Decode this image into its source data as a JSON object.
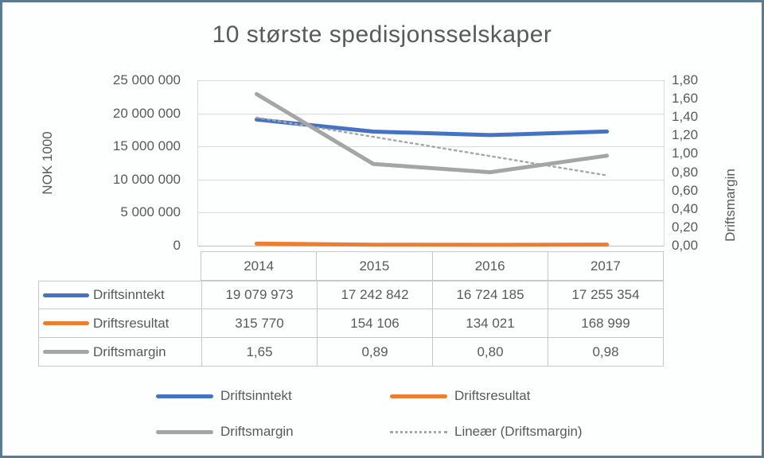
{
  "chart": {
    "title": "10 største spedisjonsselskaper",
    "left_axis": {
      "title": "NOK 1000",
      "ticks": [
        "25 000 000",
        "20 000 000",
        "15 000 000",
        "10 000 000",
        "5 000 000",
        "0"
      ]
    },
    "right_axis": {
      "title": "Driftsmargin",
      "ticks": [
        "1,80",
        "1,60",
        "1,40",
        "1,20",
        "1,00",
        "0,80",
        "0,60",
        "0,40",
        "0,20",
        "0,00"
      ]
    }
  },
  "chart_data": {
    "type": "line",
    "title": "10 største spedisjonsselskaper",
    "categories": [
      "2014",
      "2015",
      "2016",
      "2017"
    ],
    "series": [
      {
        "name": "Driftsinntekt",
        "axis": "left",
        "color": "#4472C4",
        "style": "solid",
        "values": [
          19079973,
          17242842,
          16724185,
          17255354
        ]
      },
      {
        "name": "Driftsresultat",
        "axis": "left",
        "color": "#ED7D31",
        "style": "solid",
        "values": [
          315770,
          154106,
          134021,
          168999
        ]
      },
      {
        "name": "Driftsmargin",
        "axis": "right",
        "color": "#A5A5A5",
        "style": "solid",
        "values": [
          1.65,
          0.89,
          0.8,
          0.98
        ]
      },
      {
        "name": "Lineær (Driftsmargin)",
        "axis": "right",
        "color": "#A6A6A6",
        "style": "dotted",
        "trend_of": "Driftsmargin"
      }
    ],
    "left_ylabel": "NOK 1000",
    "right_ylabel": "Driftsmargin",
    "left_ylim": [
      0,
      25000000
    ],
    "right_ylim": [
      0,
      1.8
    ],
    "grid": true,
    "legend_position": "bottom"
  },
  "table": {
    "header": [
      "2014",
      "2015",
      "2016",
      "2017"
    ],
    "rows": [
      {
        "label": "Driftsinntekt",
        "key_color": "#4472C4",
        "cells": [
          "19 079 973",
          "17 242 842",
          "16 724 185",
          "17 255 354"
        ]
      },
      {
        "label": "Driftsresultat",
        "key_color": "#ED7D31",
        "cells": [
          "315 770",
          "154 106",
          "134 021",
          "168 999"
        ]
      },
      {
        "label": "Driftsmargin",
        "key_color": "#A5A5A5",
        "cells": [
          "1,65",
          "0,89",
          "0,80",
          "0,98"
        ]
      }
    ]
  },
  "legend": {
    "items": [
      {
        "label": "Driftsinntekt",
        "color": "#4472C4",
        "style": "solid"
      },
      {
        "label": "Driftsresultat",
        "color": "#ED7D31",
        "style": "solid"
      },
      {
        "label": "Driftsmargin",
        "color": "#A5A5A5",
        "style": "solid"
      },
      {
        "label": "Lineær (Driftsmargin)",
        "color": "#A6A6A6",
        "style": "dotted"
      }
    ]
  },
  "colors": {
    "frame_border": "#5C7B91",
    "gridline": "#D9D9D9",
    "axis_line": "#BFBFBF",
    "text": "#595959"
  }
}
